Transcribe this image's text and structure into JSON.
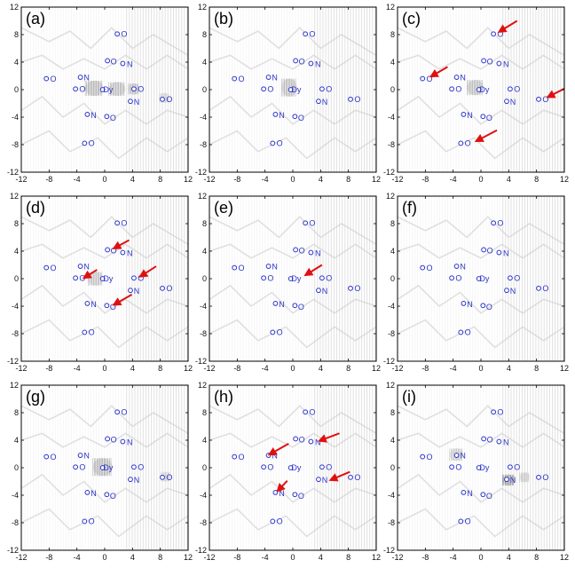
{
  "figure": {
    "title": "",
    "grid": "3x3 small multiples of 2D contour maps with atom labels"
  },
  "chart_data": {
    "type": "contour-map-panels",
    "axes": {
      "xlim": [
        -12,
        12
      ],
      "ylim": [
        -12,
        12
      ],
      "xticks": [
        -12,
        -8,
        -4,
        0,
        4,
        8,
        12
      ],
      "yticks": [
        -12,
        -8,
        -4,
        0,
        4,
        8,
        12
      ],
      "xtick_labels": [
        "-12",
        "-8",
        "-4",
        "0",
        "4",
        "8",
        "12"
      ],
      "ytick_labels": [
        "-12",
        "-8",
        "-4",
        "0",
        "4",
        "8",
        "12"
      ],
      "xlabel": "",
      "ylabel": ""
    },
    "atoms": [
      {
        "label": "Dy",
        "x": 0.5,
        "y": 0.0
      },
      {
        "label": "N",
        "x": -2.6,
        "y": 1.8
      },
      {
        "label": "N",
        "x": 3.6,
        "y": 3.7
      },
      {
        "label": "N",
        "x": -1.6,
        "y": -3.7
      },
      {
        "label": "N",
        "x": 4.6,
        "y": -1.8
      },
      {
        "label": "O",
        "x": 2.8,
        "y": 8.1
      },
      {
        "label": "O",
        "x": -7.4,
        "y": 1.6
      },
      {
        "label": "O",
        "x": -3.2,
        "y": 0.1
      },
      {
        "label": "O",
        "x": 1.3,
        "y": 4.1
      },
      {
        "label": "O",
        "x": 5.2,
        "y": 0.1
      },
      {
        "label": "O",
        "x": 1.2,
        "y": -4.1
      },
      {
        "label": "O",
        "x": 9.3,
        "y": -1.4
      },
      {
        "label": "O",
        "x": -1.9,
        "y": -7.8
      }
    ],
    "unlabeled_atoms": [
      {
        "x": 1.8,
        "y": 8.1
      },
      {
        "x": -8.4,
        "y": 1.6
      },
      {
        "x": -4.2,
        "y": 0.1
      },
      {
        "x": 0.4,
        "y": 4.2
      },
      {
        "x": 4.2,
        "y": 0.1
      },
      {
        "x": 0.3,
        "y": -3.9
      },
      {
        "x": 8.3,
        "y": -1.4
      },
      {
        "x": -2.9,
        "y": -7.8
      },
      {
        "x": -3.5,
        "y": 1.8
      },
      {
        "x": 2.6,
        "y": 3.8
      },
      {
        "x": -2.5,
        "y": -3.6
      },
      {
        "x": 3.7,
        "y": -1.7
      },
      {
        "x": -0.3,
        "y": 0.0
      }
    ],
    "panels": [
      {
        "label": "(a)",
        "blobs": [
          {
            "x": -1.5,
            "y": 0.2,
            "w": 2.6,
            "h": 2.2,
            "intensity": 0.55
          },
          {
            "x": 1.8,
            "y": 0.1,
            "w": 2.4,
            "h": 2.0,
            "intensity": 0.5
          },
          {
            "x": 4.2,
            "y": 0.1,
            "w": 1.6,
            "h": 1.6,
            "intensity": 0.45
          },
          {
            "x": 8.6,
            "y": -1.2,
            "w": 1.4,
            "h": 1.4,
            "intensity": 0.3
          }
        ],
        "arrows": []
      },
      {
        "label": "(b)",
        "blobs": [
          {
            "x": -0.5,
            "y": 0.3,
            "w": 2.2,
            "h": 2.6,
            "intensity": 0.5
          }
        ],
        "arrows": []
      },
      {
        "label": "(c)",
        "blobs": [
          {
            "x": -0.8,
            "y": 0.3,
            "w": 2.4,
            "h": 2.2,
            "intensity": 0.5
          }
        ],
        "arrows": [
          {
            "from": [
              5.2,
              10.0
            ],
            "to": [
              2.6,
              8.4
            ]
          },
          {
            "from": [
              -4.8,
              3.3
            ],
            "to": [
              -7.2,
              1.9
            ]
          },
          {
            "from": [
              12.5,
              0.4
            ],
            "to": [
              9.6,
              -1.1
            ]
          },
          {
            "from": [
              2.3,
              -5.9
            ],
            "to": [
              -0.7,
              -7.5
            ]
          }
        ]
      },
      {
        "label": "(d)",
        "blobs": [
          {
            "x": -1.3,
            "y": 0.0,
            "w": 2.2,
            "h": 2.0,
            "intensity": 0.45
          }
        ],
        "arrows": [
          {
            "from": [
              3.5,
              5.6
            ],
            "to": [
              1.3,
              4.4
            ]
          },
          {
            "from": [
              -1.1,
              1.3
            ],
            "to": [
              -3.0,
              0.1
            ]
          },
          {
            "from": [
              7.4,
              1.8
            ],
            "to": [
              5.1,
              0.3
            ]
          },
          {
            "from": [
              3.9,
              -2.3
            ],
            "to": [
              1.3,
              -3.8
            ]
          }
        ]
      },
      {
        "label": "(e)",
        "blobs": [],
        "arrows": [
          {
            "from": [
              4.2,
              2.0
            ],
            "to": [
              1.8,
              0.5
            ]
          }
        ]
      },
      {
        "label": "(f)",
        "blobs": [],
        "arrows": []
      },
      {
        "label": "(g)",
        "blobs": [
          {
            "x": -0.3,
            "y": 0.1,
            "w": 2.8,
            "h": 2.6,
            "intensity": 0.55
          },
          {
            "x": 8.8,
            "y": -1.3,
            "w": 1.4,
            "h": 1.4,
            "intensity": 0.3
          }
        ],
        "arrows": []
      },
      {
        "label": "(h)",
        "blobs": [],
        "arrows": [
          {
            "from": [
              -0.6,
              3.5
            ],
            "to": [
              -3.4,
              1.9
            ]
          },
          {
            "from": [
              6.7,
              5.0
            ],
            "to": [
              3.8,
              3.9
            ]
          },
          {
            "from": [
              -0.8,
              -1.9
            ],
            "to": [
              -2.2,
              -3.4
            ]
          },
          {
            "from": [
              8.2,
              -0.6
            ],
            "to": [
              5.4,
              -1.8
            ]
          }
        ]
      },
      {
        "label": "(i)",
        "blobs": [
          {
            "x": -3.5,
            "y": 1.9,
            "w": 2.0,
            "h": 1.8,
            "intensity": 0.4
          },
          {
            "x": 4.0,
            "y": -1.8,
            "w": 1.8,
            "h": 1.6,
            "intensity": 0.75
          },
          {
            "x": 6.3,
            "y": -1.4,
            "w": 1.4,
            "h": 1.4,
            "intensity": 0.35
          }
        ],
        "arrows": []
      }
    ]
  },
  "colors": {
    "atom": "#2a33c8",
    "arrow": "#e01010",
    "contour": "#c9c9c9",
    "hatch": "#e4e4e4",
    "frame": "#000000"
  }
}
